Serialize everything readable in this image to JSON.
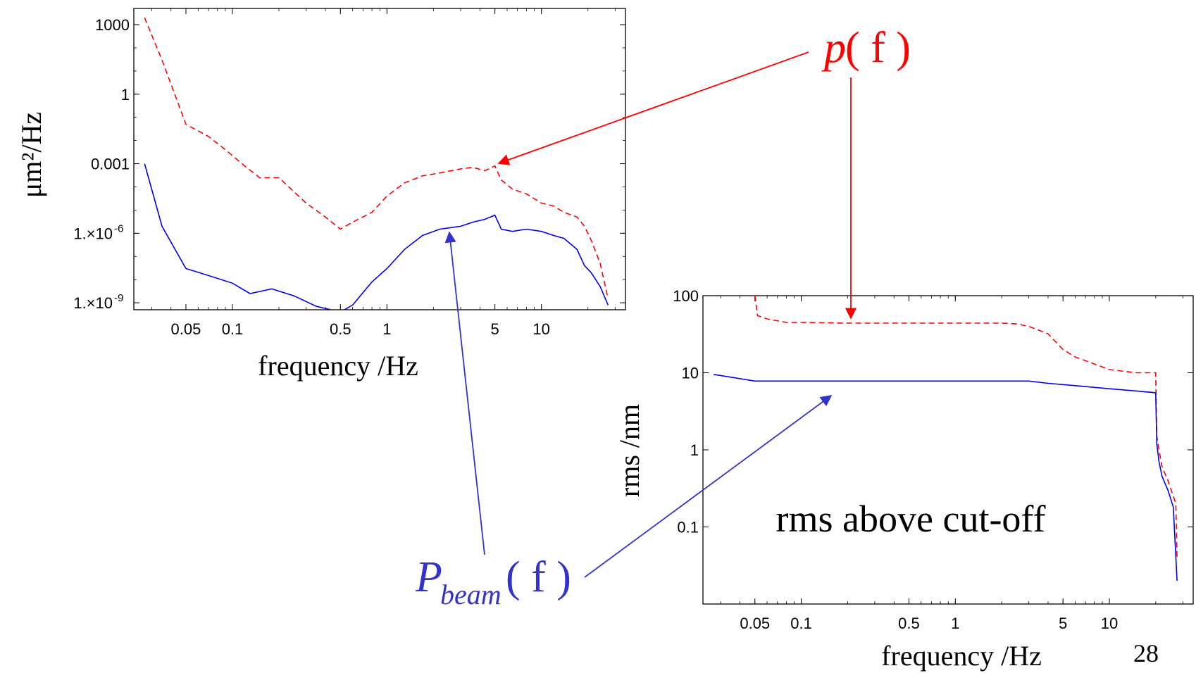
{
  "chart_data": [
    {
      "type": "line",
      "xscale": "log",
      "yscale": "log",
      "xlim": [
        0.023,
        35
      ],
      "ylim": [
        5e-10,
        5000
      ],
      "xlabel": "frequency /Hz",
      "ylabel": "μm²/Hz",
      "xticks": [
        {
          "value": 0.05,
          "label": "0.05"
        },
        {
          "value": 0.1,
          "label": "0.1"
        },
        {
          "value": 0.5,
          "label": "0.5"
        },
        {
          "value": 1,
          "label": "1"
        },
        {
          "value": 5,
          "label": "5"
        },
        {
          "value": 10,
          "label": "10"
        }
      ],
      "yticks": [
        {
          "value": 1000,
          "label": "1000"
        },
        {
          "value": 1,
          "label": "1"
        },
        {
          "value": 0.001,
          "label": "0.001"
        },
        {
          "value": 1e-06,
          "label": "1.×10"
        },
        {
          "value": 1e-09,
          "label": "1.×10"
        }
      ],
      "ytick_exponents": [
        "-6",
        "-9"
      ],
      "series": [
        {
          "name": "p(f)",
          "color": "#ff0000",
          "dash": "dashed",
          "x": [
            0.027,
            0.035,
            0.05,
            0.07,
            0.09,
            0.12,
            0.15,
            0.2,
            0.3,
            0.4,
            0.5,
            0.6,
            0.8,
            1.0,
            1.3,
            1.7,
            2.2,
            3.0,
            3.6,
            4.3,
            5.0,
            5.5,
            6.5,
            8,
            10,
            12,
            14,
            17,
            19,
            21,
            24,
            27
          ],
          "y": [
            2000,
            30,
            0.05,
            0.015,
            0.004,
            0.0008,
            0.00025,
            0.00025,
            2e-05,
            5e-06,
            1.5e-06,
            3e-06,
            8e-06,
            4e-05,
            0.00015,
            0.0003,
            0.0004,
            0.0006,
            0.0007,
            0.0005,
            0.0008,
            0.0002,
            8e-05,
            5e-05,
            2e-05,
            1.5e-05,
            8e-06,
            5e-06,
            2e-06,
            5e-07,
            5e-08,
            1.5e-09
          ]
        },
        {
          "name": "P_beam(f)",
          "color": "#0000ee",
          "dash": "solid",
          "x": [
            0.027,
            0.035,
            0.05,
            0.07,
            0.1,
            0.13,
            0.18,
            0.25,
            0.35,
            0.5,
            0.6,
            0.8,
            1.0,
            1.3,
            1.7,
            2.2,
            3.0,
            3.6,
            4.3,
            5.0,
            5.5,
            6.5,
            8,
            10,
            12,
            14,
            17,
            19,
            21,
            24,
            27
          ],
          "y": [
            0.001,
            2e-06,
            3e-08,
            1.5e-08,
            7e-09,
            2.5e-09,
            4e-09,
            2e-09,
            7e-10,
            4e-10,
            8e-10,
            8e-09,
            3e-08,
            2e-07,
            8e-07,
            1.5e-06,
            2e-06,
            3e-06,
            4e-06,
            6e-06,
            1.5e-06,
            1.2e-06,
            1.5e-06,
            1.2e-06,
            8e-07,
            6e-07,
            2e-07,
            4e-08,
            2e-08,
            5e-09,
            8e-10
          ]
        }
      ]
    },
    {
      "type": "line",
      "xscale": "log",
      "yscale": "log",
      "xlim": [
        0.023,
        35
      ],
      "ylim": [
        0.01,
        100
      ],
      "xlabel": "frequency /Hz",
      "ylabel": "rms /nm",
      "xticks": [
        {
          "value": 0.05,
          "label": "0.05"
        },
        {
          "value": 0.1,
          "label": "0.1"
        },
        {
          "value": 0.5,
          "label": "0.5"
        },
        {
          "value": 1,
          "label": "1"
        },
        {
          "value": 5,
          "label": "5"
        },
        {
          "value": 10,
          "label": "10"
        }
      ],
      "yticks": [
        {
          "value": 100,
          "label": "100"
        },
        {
          "value": 10,
          "label": "10"
        },
        {
          "value": 1,
          "label": "1"
        },
        {
          "value": 0.1,
          "label": "0.1"
        }
      ],
      "annotation": "rms above cut-off",
      "series": [
        {
          "name": "p(f)",
          "color": "#ff0000",
          "dash": "dashed",
          "x": [
            0.05,
            0.052,
            0.06,
            0.08,
            0.1,
            0.2,
            0.5,
            1.0,
            2.0,
            2.5,
            3.0,
            4.0,
            5.0,
            6.0,
            8.0,
            10.0,
            15.0,
            20.0,
            20.3,
            21,
            22,
            24,
            26,
            27,
            27.5
          ],
          "y": [
            100,
            55,
            50,
            45,
            45,
            44,
            44,
            44,
            44,
            43,
            40,
            32,
            20,
            16,
            13,
            11,
            10,
            10,
            1.5,
            1,
            0.6,
            0.4,
            0.25,
            0.2,
            0.04
          ]
        },
        {
          "name": "P_beam(f)",
          "color": "#0000ee",
          "dash": "solid",
          "x": [
            0.027,
            0.05,
            0.1,
            0.5,
            1.0,
            3.0,
            4.0,
            6.0,
            10.0,
            15.0,
            20.0,
            20.3,
            21,
            22,
            24,
            26,
            27.5
          ],
          "y": [
            9.5,
            7.8,
            7.8,
            7.8,
            7.8,
            7.8,
            7.3,
            6.8,
            6.2,
            5.8,
            5.5,
            1.2,
            0.7,
            0.45,
            0.3,
            0.18,
            0.02
          ]
        }
      ]
    }
  ],
  "labels": {
    "p_label_main": "p",
    "p_label_paren": "( f )",
    "pbeam_main": "P",
    "pbeam_sub": "beam",
    "pbeam_paren": "( f )",
    "page_number": "28"
  }
}
